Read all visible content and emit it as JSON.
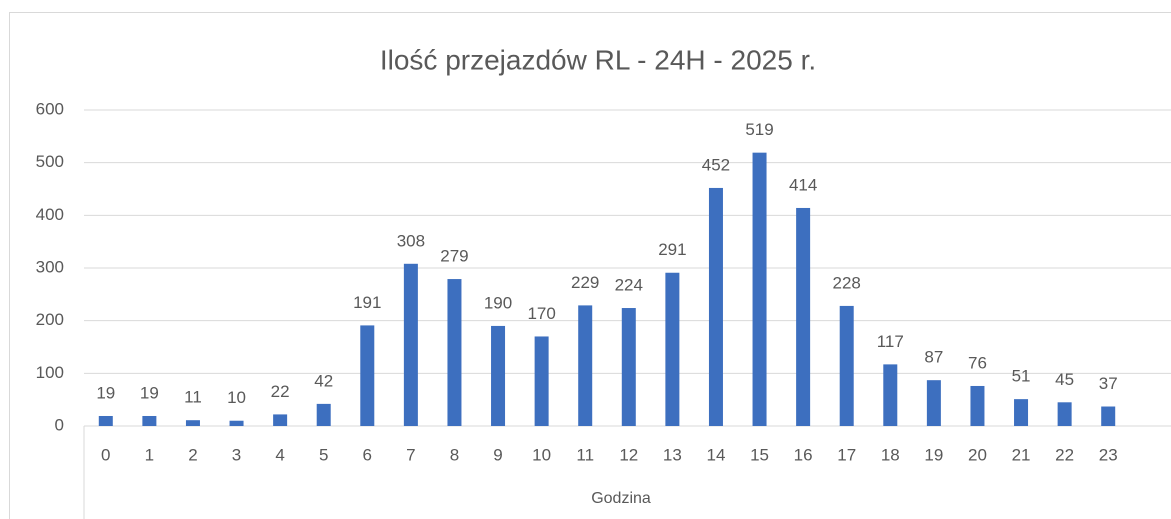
{
  "chart_data": {
    "type": "bar",
    "title": "Ilość przejazdów RL - 24H - 2025 r.",
    "x_label": "Godzina",
    "categories": [
      "0",
      "1",
      "2",
      "3",
      "4",
      "5",
      "6",
      "7",
      "8",
      "9",
      "10",
      "11",
      "12",
      "13",
      "14",
      "15",
      "16",
      "17",
      "18",
      "19",
      "20",
      "21",
      "22",
      "23"
    ],
    "values": [
      19,
      19,
      11,
      10,
      22,
      42,
      191,
      308,
      279,
      190,
      170,
      229,
      224,
      291,
      452,
      519,
      414,
      228,
      117,
      87,
      76,
      51,
      45,
      37
    ],
    "color": "#3d6fbf",
    "ylim": [
      0,
      600
    ],
    "yticks": [
      0,
      100,
      200,
      300,
      400,
      500,
      600
    ],
    "grid": true
  }
}
